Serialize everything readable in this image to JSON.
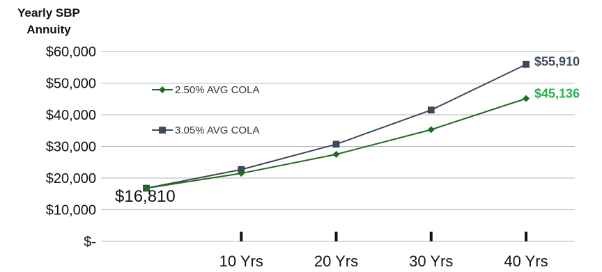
{
  "chart_data": {
    "type": "line",
    "ylabel_lines": [
      "Yearly SBP",
      "Annuity"
    ],
    "ylim": [
      0,
      60000
    ],
    "y_ticks": [
      {
        "value": 0,
        "label": "$-"
      },
      {
        "value": 10000,
        "label": "$10,000"
      },
      {
        "value": 20000,
        "label": "$20,000"
      },
      {
        "value": 30000,
        "label": "$30,000"
      },
      {
        "value": 40000,
        "label": "$40,000"
      },
      {
        "value": 50000,
        "label": "$50,000"
      },
      {
        "value": 60000,
        "label": "$60,000"
      }
    ],
    "x": [
      0,
      10,
      20,
      30,
      40
    ],
    "x_tick_labels": [
      "10 Yrs",
      "20 Yrs",
      "30 Yrs",
      "40 Yrs"
    ],
    "x_tick_values": [
      10,
      20,
      30,
      40
    ],
    "grid": true,
    "legend_position": "top-left",
    "series": [
      {
        "name": "2.50% AVG COLA",
        "color": "#1e6b1e",
        "marker": "diamond",
        "values": [
          16810,
          21500,
          27500,
          35300,
          45136
        ],
        "end_label": "$45,136",
        "end_label_color": "#22b14c"
      },
      {
        "name": "3.05% AVG COLA",
        "color": "#3d4a5c",
        "marker": "square",
        "values": [
          16810,
          22700,
          30700,
          41500,
          55910
        ],
        "end_label": "$55,910",
        "end_label_color": "#3d4a5c"
      }
    ],
    "start_label": "$16,810"
  }
}
